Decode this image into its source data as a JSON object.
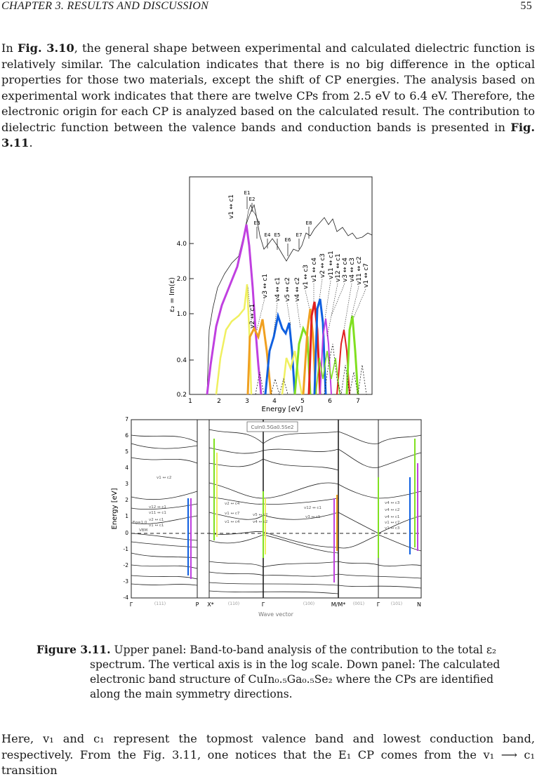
{
  "header": {
    "chapter": "CHAPTER 3.  RESULTS AND DISCUSSION",
    "page": "55"
  },
  "paragraph1": {
    "t1": "In ",
    "fig_ref_a": "Fig. 3.10",
    "t2": ", the general shape between experimental and calculated dielectric function is relatively similar. The calculation indicates that there is no big difference in the optical properties for those two materials, except the shift of CP energies. The analysis based on experimental work indicates that there are twelve CPs from 2.5 eV to 6.4 eV. Therefore, the electronic origin for each CP is analyzed based on the calculated result. The contribution to dielectric function between the valence bands and conduction bands is presented in ",
    "fig_ref_b": "Fig. 3.11",
    "t3": "."
  },
  "upper_plot": {
    "ylabel": "ε₂ = Im(ε)",
    "xlabel": "Energy [eV]",
    "yticks": [
      "4.0",
      "2.0",
      "1.0",
      "0.4",
      "0.2"
    ],
    "xticks": [
      "1",
      "2",
      "3",
      "4",
      "5",
      "6",
      "7"
    ],
    "cp_labels": [
      "E1",
      "E2",
      "E3",
      "E4",
      "E5",
      "E6",
      "E7",
      "E8"
    ],
    "transitions": [
      "v1 ↔ c1",
      "v2 ↔ c1",
      "v3 ↔ c1",
      "v4 ↔ c1",
      "v5 ↔ c2",
      "v4 ↔ c2",
      "v1 ↔ c3",
      "v1 ↔ c4",
      "v2 ↔ c3",
      "v11 ↔ c1",
      "v12 ↔ c1",
      "v3 ↔ c4",
      "v4 ↔ c3",
      "v11 ↔ c2",
      "v1 ↔ c7"
    ]
  },
  "band_plot": {
    "ylabel": "Energy [eV]",
    "xlabel": "Wave vector",
    "yticks": [
      "7",
      "6",
      "5",
      "4",
      "3",
      "2",
      "1",
      "0",
      "-1",
      "-2",
      "-3",
      "-4"
    ],
    "kpoints": [
      "Γ",
      "P",
      "X*",
      "Γ",
      "M/M*",
      "Γ",
      "N"
    ],
    "directions": [
      "(111)",
      "(110)",
      "(100)",
      "(001)",
      "(101)"
    ],
    "material_box": "CuIn0.5Ga0.5Se2",
    "gap_label": "Eg=1.0",
    "vbm_label": "VBM",
    "labels_left": [
      "v12 ↔ c1",
      "v11 ↔ c1",
      "v2 ↔ c1",
      "v1 ↔ c1"
    ],
    "label_left_top": "v1 ↔ c2",
    "labels_x": [
      "v2 ↔ c4",
      "v1 ↔ c7",
      "v1 ↔ c4"
    ],
    "labels_gamma": [
      "v5 ↔ c2",
      "v4 ↔ c2"
    ],
    "labels_m": [
      "v12 ↔ c1",
      "v3 ↔ c1"
    ],
    "labels_n": [
      "v4 ↔ c3",
      "v4 ↔ c2",
      "v4 ↔ c1",
      "v1 ↔ c7",
      "v1 ↔ c3"
    ]
  },
  "caption": {
    "label": "Figure 3.11.",
    "text": " Upper panel: Band-to-band analysis of the contribution to the total ε₂ spectrum. The vertical axis is in the log scale. Down panel: The calculated electronic band structure of CuIn₀.₅Ga₀.₅Se₂ where the CPs are identified along the main symmetry directions."
  },
  "paragraph2": {
    "text": "Here, v₁ and c₁ represent the topmost valence band and lowest conduction band, respectively. From the Fig. 3.11, one notices that the E₁ CP comes from the v₁ ⟶ c₁ transition"
  },
  "colors": {
    "text": "#1a1a1a",
    "purple": "#c040e0",
    "yellow": "#f0f060",
    "orange": "#f0a020",
    "blue": "#1060e0",
    "green": "#80e020",
    "red": "#e02020"
  }
}
